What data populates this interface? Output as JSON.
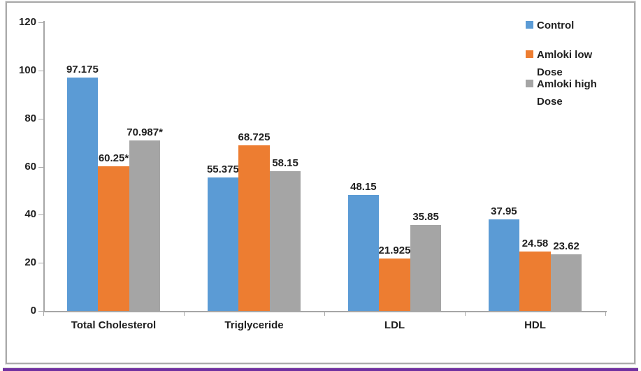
{
  "chart_data": {
    "type": "bar",
    "title": "",
    "categories": [
      "Total Cholesterol",
      "Triglyceride",
      "LDL",
      "HDL"
    ],
    "series": [
      {
        "name": "Control",
        "color": "#5B9BD5",
        "values": [
          97.175,
          55.375,
          48.15,
          37.95
        ],
        "labels": [
          "97.175",
          "55.375",
          "48.15",
          "37.95"
        ]
      },
      {
        "name": "Amloki low Dose",
        "color": "#ED7D31",
        "values": [
          60.25,
          68.725,
          21.925,
          24.58
        ],
        "labels": [
          "60.25*",
          "68.725",
          "21.925",
          "24.58"
        ]
      },
      {
        "name": "Amloki high Dose",
        "color": "#A5A5A5",
        "values": [
          70.987,
          58.15,
          35.85,
          23.62
        ],
        "labels": [
          "70.987*",
          "58.15",
          "35.85",
          "23.62"
        ]
      }
    ],
    "ylim": [
      0,
      120
    ],
    "yticks": [
      0,
      20,
      40,
      60,
      80,
      100,
      120
    ],
    "xlabel": "",
    "ylabel": "",
    "grid": false,
    "legend_position": "top-right"
  },
  "page": {
    "axis_color": "#a6a6a6",
    "text_color": "#1f1f1f",
    "frame_border_color": "#ababab",
    "bottom_bar_color": "#7030A0"
  }
}
